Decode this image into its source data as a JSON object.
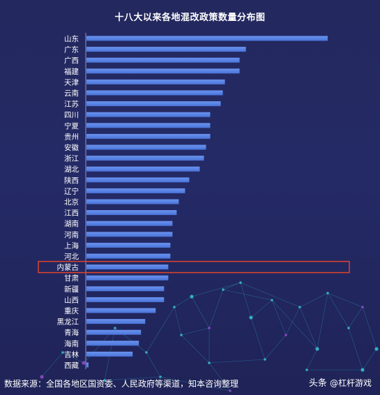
{
  "title": "十八大以来各地混改政策数量分布图",
  "source_text": "数据来源：全国各地区国资委、人民政府等渠道，知本咨询整理",
  "brand": {
    "name": "头条",
    "handle": "@杠杆游戏"
  },
  "colors": {
    "bar": "#4a74d8",
    "bar_top": "#6a93ef",
    "highlight": "#e0442c",
    "label": "#ffffff",
    "axis": "#b9c4ff"
  },
  "chart_data": {
    "type": "bar",
    "orientation": "horizontal",
    "title": "十八大以来各地混改政策数量分布图",
    "categories": [
      "山东",
      "广东",
      "广西",
      "福建",
      "天津",
      "云南",
      "江苏",
      "四川",
      "宁夏",
      "贵州",
      "安徽",
      "浙江",
      "湖北",
      "陕西",
      "辽宁",
      "北京",
      "江西",
      "湖南",
      "河南",
      "上海",
      "河北",
      "内蒙古",
      "甘肃",
      "新疆",
      "山西",
      "重庆",
      "黑龙江",
      "青海",
      "海南",
      "吉林",
      "西藏"
    ],
    "values": [
      115,
      76,
      73,
      73,
      66,
      65,
      64,
      59,
      59,
      59,
      57,
      56,
      54,
      49,
      47,
      44,
      43,
      41,
      41,
      40,
      40,
      39,
      39,
      37,
      37,
      33,
      28,
      26,
      25,
      22,
      1
    ],
    "highlighted": "内蒙古",
    "xlabel": "",
    "ylabel": "",
    "grid": false,
    "legend": "none"
  }
}
